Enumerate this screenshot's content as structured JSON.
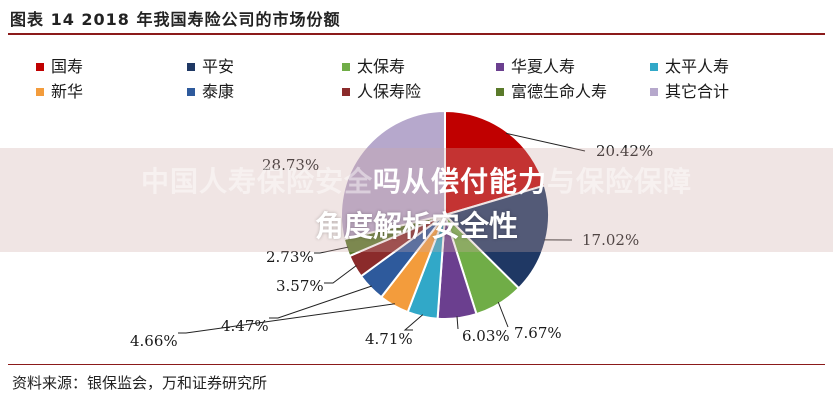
{
  "figure_title": "图表 14    2018 年我国寿险公司的市场份额",
  "source_note": "资料来源：银保监会，万和证券研究所",
  "watermark": {
    "prefix_faint": "中国人寿保险安全",
    "strong": "吗从偿付能力",
    "suffix_faint": "与保险保障",
    "line2": "角度解析安全性"
  },
  "chart_data": {
    "type": "pie",
    "title": "",
    "legend_placement": "top",
    "slices": [
      {
        "name": "国寿",
        "value": 20.42,
        "label": "20.42%",
        "color": "#c00000"
      },
      {
        "name": "平安",
        "value": 17.02,
        "label": "17.02%",
        "color": "#1f3864"
      },
      {
        "name": "太保寿",
        "value": 7.67,
        "label": "7.67%",
        "color": "#70ad47"
      },
      {
        "name": "华夏人寿",
        "value": 6.03,
        "label": "6.03%",
        "color": "#6b3f8f"
      },
      {
        "name": "太平人寿",
        "value": 4.71,
        "label": "4.71%",
        "color": "#31a8c8"
      },
      {
        "name": "新华",
        "value": 4.66,
        "label": "4.66%",
        "color": "#f39c3c"
      },
      {
        "name": "泰康",
        "value": 4.47,
        "label": "4.47%",
        "color": "#2e5a9c"
      },
      {
        "name": "人保寿险",
        "value": 3.57,
        "label": "3.57%",
        "color": "#8b2b2b"
      },
      {
        "name": "富德生命人寿",
        "value": 2.73,
        "label": "2.73%",
        "color": "#5a7a2a"
      },
      {
        "name": "其它合计",
        "value": 28.73,
        "label": "28.73%",
        "color": "#b6a8cc"
      }
    ]
  }
}
